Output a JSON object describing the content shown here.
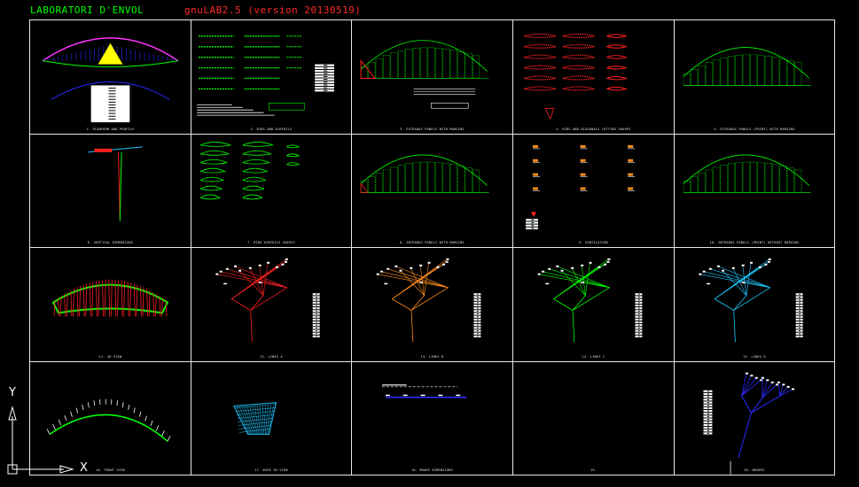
{
  "header": {
    "title_left": "LABORATORI D'ENVOL",
    "title_right": "gnuLAB2.5    (version 20130519)"
  },
  "colors": {
    "background": "#000000",
    "frame": "#e8e8e8",
    "green": "#00ff00",
    "red": "#ff2020",
    "orange": "#ff8c1a",
    "cyan": "#1ec8ff",
    "yellow": "#ffff00",
    "magenta": "#ff33ff",
    "blue": "#2a2aff"
  },
  "ucs": {
    "x_label": "X",
    "y_label": "Y"
  },
  "panels": [
    {
      "name": "panel-planform",
      "caption": "1. PLANFORM AND PROFILE"
    },
    {
      "name": "panel-ribs",
      "caption": "2. RIBS AND AIRFOILS"
    },
    {
      "name": "panel-extrados",
      "caption": "3. EXTRADOS PANELS WITH MARGINS"
    },
    {
      "name": "panel-diagonals",
      "caption": "4. RIBS AND DIAGONALS CUTTING SHAPES"
    },
    {
      "name": "panel-extrados-print",
      "caption": "5. EXTRADOS PANELS (PRINT) WITH MARGINS"
    },
    {
      "name": "panel-vertical",
      "caption": "6. VERTICAL DIMENSIONS"
    },
    {
      "name": "panel-airfoils",
      "caption": "7. RIBS AIRFOILS SHAPES"
    },
    {
      "name": "panel-intrados",
      "caption": "8. INTRADOS PANELS WITH MARGINS"
    },
    {
      "name": "panel-vents",
      "caption": "9. VENTILATION"
    },
    {
      "name": "panel-intrados-print",
      "caption": "10. INTRADOS PANELS (PRINT) WITHOUT MARGINS"
    },
    {
      "name": "panel-3d",
      "caption": "11. 3D VIEW"
    },
    {
      "name": "panel-lines-a",
      "caption": "12. LINES A"
    },
    {
      "name": "panel-lines-b",
      "caption": "13. LINES B"
    },
    {
      "name": "panel-lines-c",
      "caption": "14. LINES C"
    },
    {
      "name": "panel-lines-d",
      "caption": "15. LINES D"
    },
    {
      "name": "panel-front",
      "caption": "16. FRONT VIEW"
    },
    {
      "name": "panel-3d-wire",
      "caption": "17. WIRE 3D VIEW"
    },
    {
      "name": "panel-brake",
      "caption": "18. BRAKE DIMENSIONS"
    },
    {
      "name": "panel-empty",
      "caption": "19."
    },
    {
      "name": "panel-brakes",
      "caption": "20. BRAKES"
    }
  ]
}
